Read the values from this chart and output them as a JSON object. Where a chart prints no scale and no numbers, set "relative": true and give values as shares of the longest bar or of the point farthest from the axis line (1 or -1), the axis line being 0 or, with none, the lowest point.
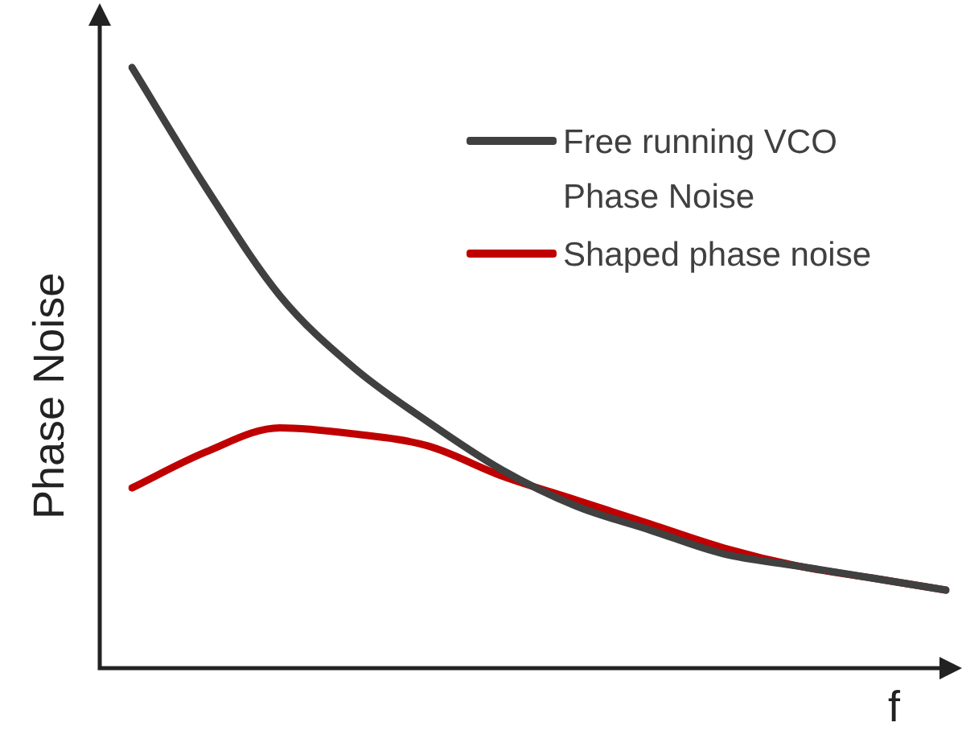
{
  "chart_data": {
    "type": "line",
    "relative": true,
    "xlabel": "f",
    "ylabel": "Phase Noise",
    "legend": "top right",
    "marker": "none",
    "line_style": "solid",
    "categories": [
      null,
      null,
      null,
      null,
      null,
      null,
      null,
      null,
      null,
      null,
      null,
      null
    ],
    "series": [
      {
        "name": "Free running VCO Phase Noise",
        "color": "#404040",
        "values": [
          1,
          0.8,
          0.62,
          0.5,
          0.41,
          0.33,
          0.27,
          0.23,
          0.19,
          0.17,
          0.15,
          0.13
        ]
      },
      {
        "name": "Shaped phase noise",
        "color": "#c00000",
        "values": [
          0.3,
          0.36,
          0.4,
          0.39,
          0.37,
          0.32,
          0.28,
          0.24,
          0.2,
          0.17,
          0.15,
          0.13
        ]
      }
    ]
  }
}
